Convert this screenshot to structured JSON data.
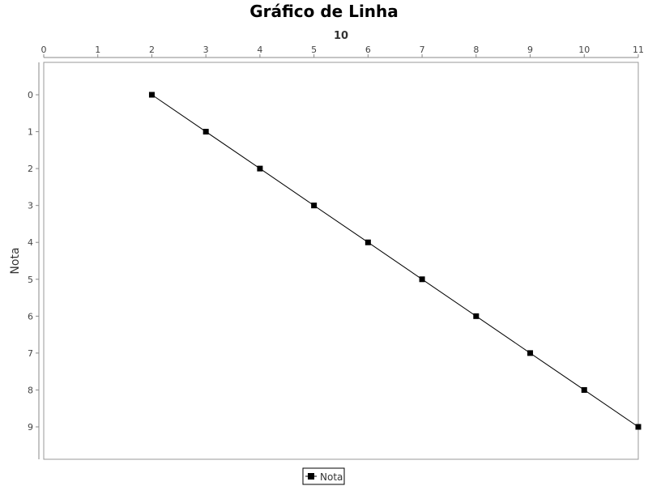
{
  "chart_data": {
    "type": "line",
    "title": "Gráfico de Linha",
    "xlabel": "10",
    "ylabel": "Nota",
    "x_axis_position": "top",
    "y_axis_inverted": true,
    "xlim": [
      0,
      11
    ],
    "ylim": [
      0,
      9
    ],
    "xticks": [
      "0",
      "1",
      "2",
      "3",
      "4",
      "5",
      "6",
      "7",
      "8",
      "9",
      "10",
      "11"
    ],
    "yticks": [
      "0",
      "1",
      "2",
      "3",
      "4",
      "5",
      "6",
      "7",
      "8",
      "9"
    ],
    "grid": false,
    "legend_position": "bottom",
    "series": [
      {
        "name": "Nota",
        "color": "#000000",
        "marker": "square",
        "x": [
          2,
          3,
          4,
          5,
          6,
          7,
          8,
          9,
          10,
          11
        ],
        "y": [
          0,
          1,
          2,
          3,
          4,
          5,
          6,
          7,
          8,
          9
        ]
      }
    ]
  }
}
